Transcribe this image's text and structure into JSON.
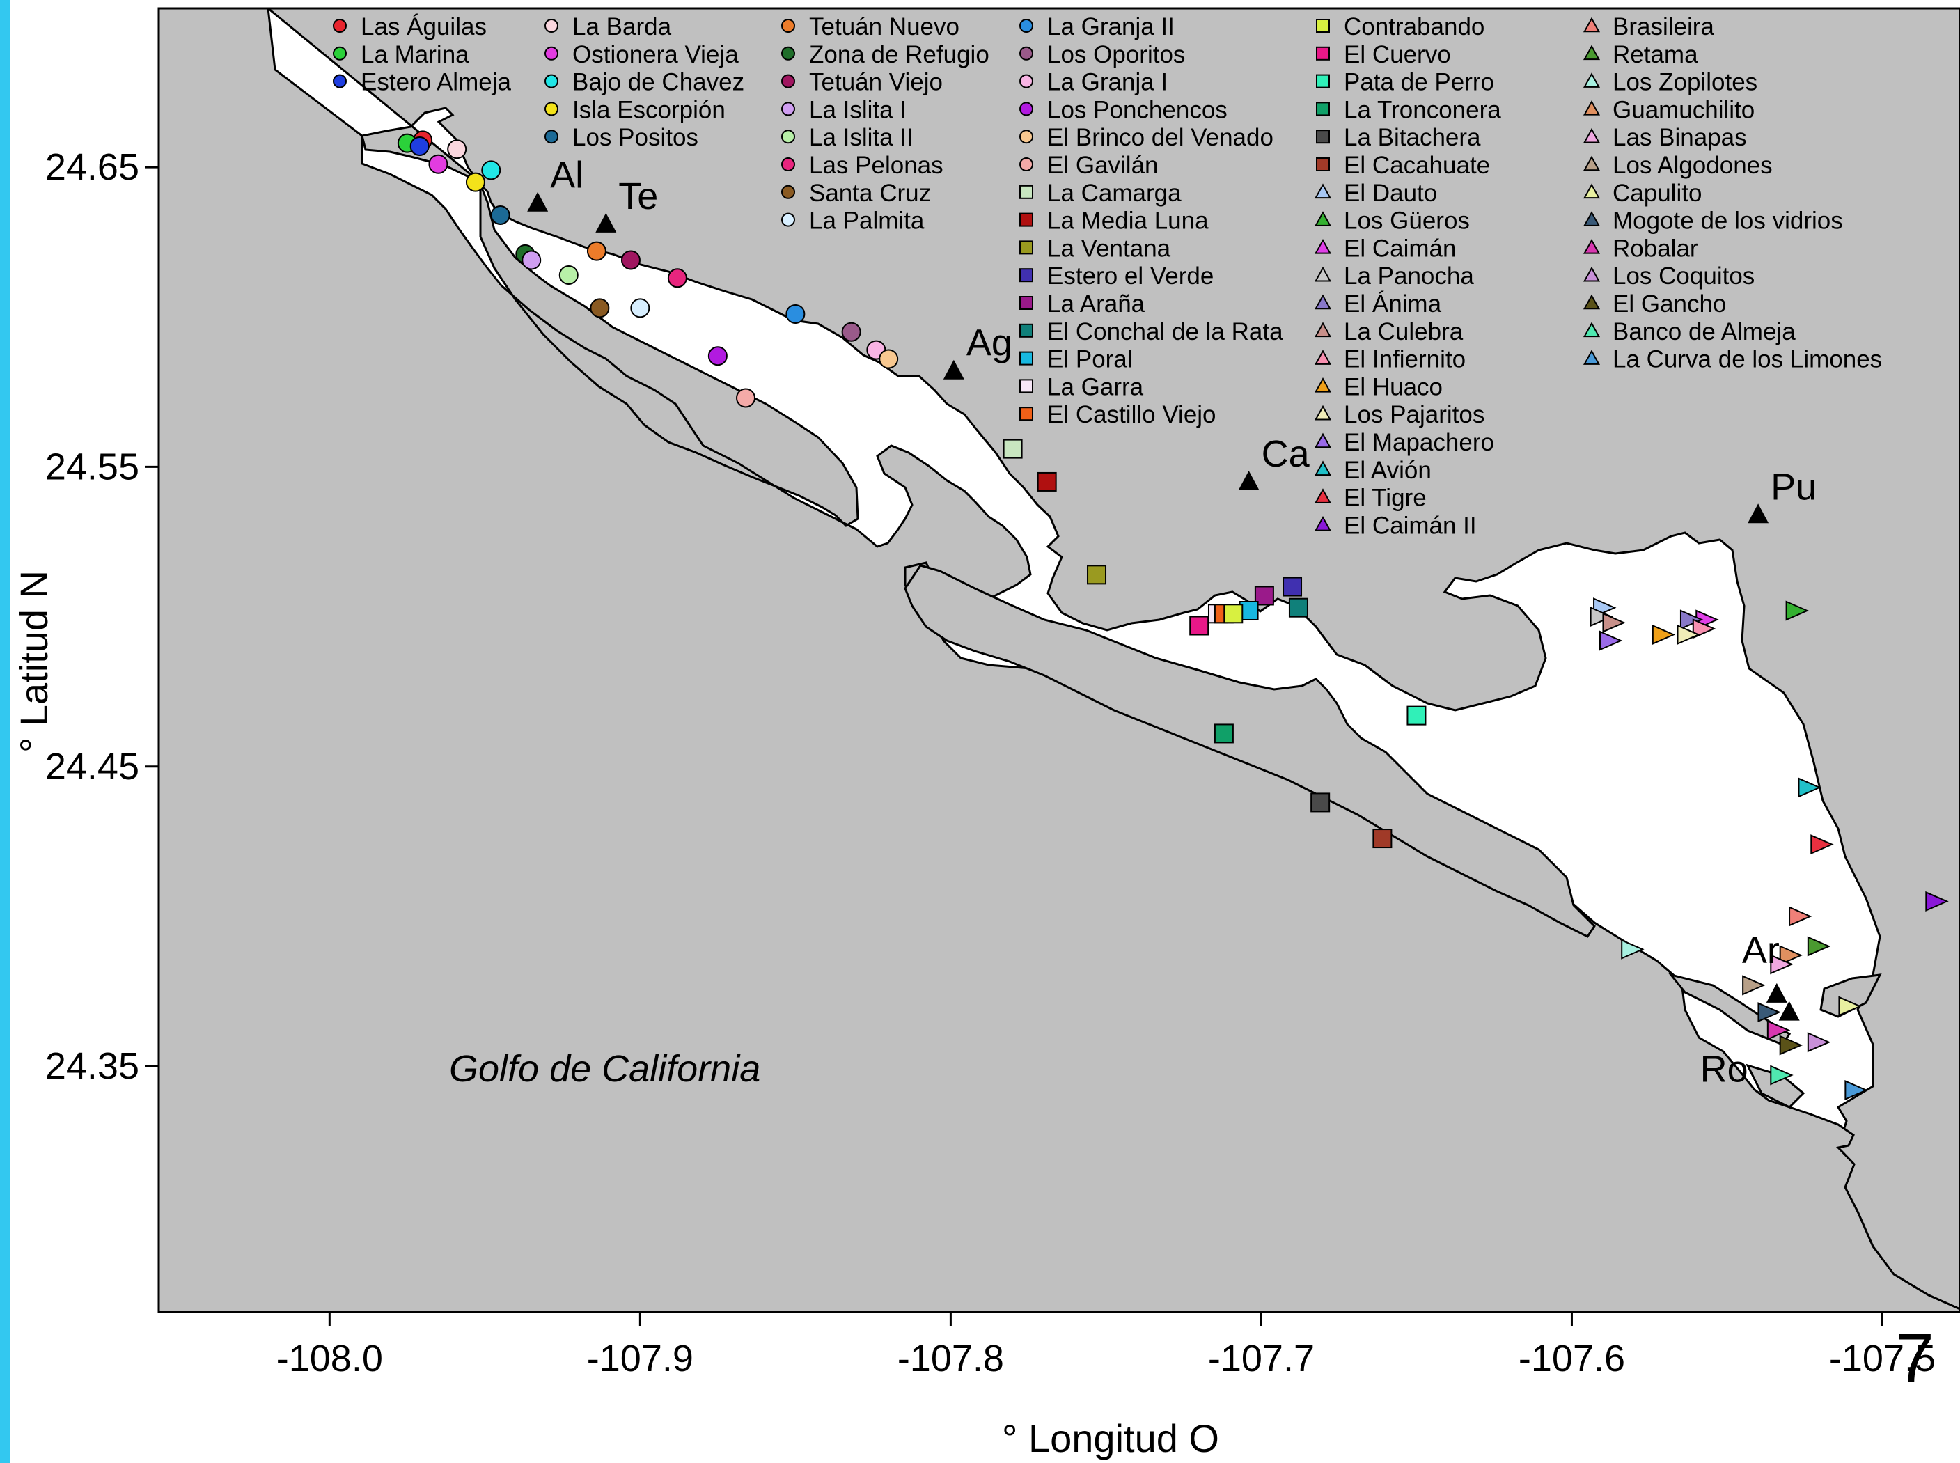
{
  "page_number": "7",
  "map": {
    "x_axis_title": "° Longitud O",
    "y_axis_title": "° Latitud N",
    "x_ticks": [
      -108.0,
      -107.9,
      -107.8,
      -107.7,
      -107.6,
      -107.5
    ],
    "x_tick_labels": [
      "-108.0",
      "-107.9",
      "-107.8",
      "-107.7",
      "-107.6",
      "-107.5"
    ],
    "y_ticks": [
      24.65,
      24.55,
      24.45,
      24.35
    ],
    "y_tick_labels": [
      "24.65",
      "24.55",
      "24.45",
      "24.35"
    ],
    "xlim": [
      -108.055,
      -107.475
    ],
    "ylim": [
      24.268,
      24.703
    ],
    "land_color": "#c0c0c0",
    "water_color": "#ffffff",
    "gulf_label": "Golfo de California",
    "towns": [
      {
        "label": "Al",
        "lon": -107.933,
        "lat": 24.638
      },
      {
        "label": "Te",
        "lon": -107.911,
        "lat": 24.631
      },
      {
        "label": "Ag",
        "lon": -107.799,
        "lat": 24.582
      },
      {
        "label": "Ca",
        "lon": -107.704,
        "lat": 24.545
      },
      {
        "label": "Pu",
        "lon": -107.54,
        "lat": 24.534
      },
      {
        "label": "Ar",
        "lon": -107.534,
        "lat": 24.374
      },
      {
        "label": "Ro",
        "lon": -107.53,
        "lat": 24.368
      }
    ],
    "sites": [
      {
        "name": "Las Águilas",
        "shape": "circle",
        "color": "#e8252e",
        "lon": -107.97,
        "lat": 24.659
      },
      {
        "name": "La Marina",
        "shape": "circle",
        "color": "#2bd13a",
        "lon": -107.975,
        "lat": 24.658
      },
      {
        "name": "Estero Almeja",
        "shape": "circle",
        "color": "#1f3ee0",
        "lon": -107.971,
        "lat": 24.657
      },
      {
        "name": "La Barda",
        "shape": "circle",
        "color": "#fad6de",
        "lon": -107.959,
        "lat": 24.656
      },
      {
        "name": "Ostionera Vieja",
        "shape": "circle",
        "color": "#e23ce0",
        "lon": -107.965,
        "lat": 24.651
      },
      {
        "name": "Bajo de Chavez",
        "shape": "circle",
        "color": "#21e6e6",
        "lon": -107.948,
        "lat": 24.649
      },
      {
        "name": "Isla Escorpión",
        "shape": "circle",
        "color": "#f3e21a",
        "lon": -107.953,
        "lat": 24.645
      },
      {
        "name": "Los Positos",
        "shape": "circle",
        "color": "#1c6a96",
        "lon": -107.945,
        "lat": 24.634
      },
      {
        "name": "Tetuán Nuevo",
        "shape": "circle",
        "color": "#ec7c2a",
        "lon": -107.914,
        "lat": 24.622
      },
      {
        "name": "Zona de Refugio",
        "shape": "circle",
        "color": "#1f6e2a",
        "lon": -107.937,
        "lat": 24.621
      },
      {
        "name": "Tetuán Viejo",
        "shape": "circle",
        "color": "#a01660",
        "lon": -107.903,
        "lat": 24.619
      },
      {
        "name": "La Islita I",
        "shape": "circle",
        "color": "#cf9ef0",
        "lon": -107.935,
        "lat": 24.619
      },
      {
        "name": "La Islita II",
        "shape": "circle",
        "color": "#b8f0a8",
        "lon": -107.923,
        "lat": 24.614
      },
      {
        "name": "Las Pelonas",
        "shape": "circle",
        "color": "#e8257e",
        "lon": -107.888,
        "lat": 24.613
      },
      {
        "name": "Santa Cruz",
        "shape": "circle",
        "color": "#8a5a22",
        "lon": -107.913,
        "lat": 24.603
      },
      {
        "name": "La Palmita",
        "shape": "circle",
        "color": "#d8efff",
        "lon": -107.9,
        "lat": 24.603
      },
      {
        "name": "La Granja II",
        "shape": "circle",
        "color": "#2a8ee0",
        "lon": -107.85,
        "lat": 24.601
      },
      {
        "name": "Los Oporitos",
        "shape": "circle",
        "color": "#9a5a8a",
        "lon": -107.832,
        "lat": 24.595
      },
      {
        "name": "La Granja I",
        "shape": "circle",
        "color": "#f8b4e4",
        "lon": -107.824,
        "lat": 24.589
      },
      {
        "name": "Los Ponchencos",
        "shape": "circle",
        "color": "#b21ae0",
        "lon": -107.875,
        "lat": 24.587
      },
      {
        "name": "El Brinco del Venado",
        "shape": "circle",
        "color": "#f8c890",
        "lon": -107.82,
        "lat": 24.586
      },
      {
        "name": "El Gavilán",
        "shape": "circle",
        "color": "#f4aaa8",
        "lon": -107.866,
        "lat": 24.573
      },
      {
        "name": "La Camarga",
        "shape": "square",
        "color": "#c8e6c0",
        "lon": -107.78,
        "lat": 24.556
      },
      {
        "name": "La Media Luna",
        "shape": "square",
        "color": "#b01010",
        "lon": -107.769,
        "lat": 24.545
      },
      {
        "name": "La Ventana",
        "shape": "square",
        "color": "#9a9a20",
        "lon": -107.753,
        "lat": 24.514
      },
      {
        "name": "Estero el Verde",
        "shape": "square",
        "color": "#4030b0",
        "lon": -107.69,
        "lat": 24.51
      },
      {
        "name": "La Araña",
        "shape": "square",
        "color": "#9a1a8a",
        "lon": -107.699,
        "lat": 24.507
      },
      {
        "name": "El Conchal de la Rata",
        "shape": "square",
        "color": "#10807a",
        "lon": -107.688,
        "lat": 24.503
      },
      {
        "name": "El Poral",
        "shape": "square",
        "color": "#18b8e0",
        "lon": -107.704,
        "lat": 24.502
      },
      {
        "name": "La Garra",
        "shape": "square",
        "color": "#f6e6f6",
        "lon": -107.714,
        "lat": 24.501
      },
      {
        "name": "El Castillo Viejo",
        "shape": "square",
        "color": "#f06018",
        "lon": -107.712,
        "lat": 24.501
      },
      {
        "name": "Contrabando",
        "shape": "square",
        "color": "#d8f040",
        "lon": -107.709,
        "lat": 24.501
      },
      {
        "name": "El Cuervo",
        "shape": "square",
        "color": "#e81888",
        "lon": -107.72,
        "lat": 24.497
      },
      {
        "name": "Pata de Perro",
        "shape": "square",
        "color": "#30f0b8",
        "lon": -107.65,
        "lat": 24.467
      },
      {
        "name": "La Tronconera",
        "shape": "square",
        "color": "#10a068",
        "lon": -107.712,
        "lat": 24.461
      },
      {
        "name": "La Bitachera",
        "shape": "square",
        "color": "#4a4a4a",
        "lon": -107.681,
        "lat": 24.438
      },
      {
        "name": "El Cacahuate",
        "shape": "square",
        "color": "#a03a28",
        "lon": -107.661,
        "lat": 24.426
      },
      {
        "name": "El Dauto",
        "shape": "triangle-up",
        "color": "#a8c8f4",
        "lon": -107.59,
        "lat": 24.503
      },
      {
        "name": "Los Güeros",
        "shape": "triangle-up",
        "color": "#34b030",
        "lon": -107.528,
        "lat": 24.502
      },
      {
        "name": "El Caimán",
        "shape": "triangle-up",
        "color": "#e040e8",
        "lon": -107.557,
        "lat": 24.499
      },
      {
        "name": "La Panocha",
        "shape": "triangle-up",
        "color": "#c8c8c8",
        "lon": -107.591,
        "lat": 24.5
      },
      {
        "name": "El Ánima",
        "shape": "triangle-up",
        "color": "#8878c8",
        "lon": -107.562,
        "lat": 24.499
      },
      {
        "name": "La Culebra",
        "shape": "triangle-up",
        "color": "#c8908a",
        "lon": -107.587,
        "lat": 24.498
      },
      {
        "name": "El Infiernito",
        "shape": "triangle-up",
        "color": "#f890b0",
        "lon": -107.558,
        "lat": 24.496
      },
      {
        "name": "El Huaco",
        "shape": "triangle-up",
        "color": "#f0a018",
        "lon": -107.571,
        "lat": 24.494
      },
      {
        "name": "Los Pajaritos",
        "shape": "triangle-up",
        "color": "#f0ecb8",
        "lon": -107.563,
        "lat": 24.494
      },
      {
        "name": "El Mapachero",
        "shape": "triangle-up",
        "color": "#9a6ae8",
        "lon": -107.588,
        "lat": 24.492
      },
      {
        "name": "El Avión",
        "shape": "triangle-up",
        "color": "#20c0c8",
        "lon": -107.524,
        "lat": 24.443
      },
      {
        "name": "El Tigre",
        "shape": "triangle-up",
        "color": "#e83040",
        "lon": -107.52,
        "lat": 24.424
      },
      {
        "name": "El Caimán II",
        "shape": "triangle-up",
        "color": "#8a18d8",
        "lon": -107.483,
        "lat": 24.405
      },
      {
        "name": "Brasileira",
        "shape": "triangle-up",
        "color": "#f08078",
        "lon": -107.527,
        "lat": 24.4
      },
      {
        "name": "Retama",
        "shape": "triangle-up",
        "color": "#4a9a30",
        "lon": -107.521,
        "lat": 24.39
      },
      {
        "name": "Los Zopilotes",
        "shape": "triangle-up",
        "color": "#a8f0e0",
        "lon": -107.581,
        "lat": 24.389
      },
      {
        "name": "Guamuchilito",
        "shape": "triangle-up",
        "color": "#e09060",
        "lon": -107.53,
        "lat": 24.387
      },
      {
        "name": "Las Binapas",
        "shape": "triangle-up",
        "color": "#f0a8e0",
        "lon": -107.533,
        "lat": 24.384
      },
      {
        "name": "Los Algodones",
        "shape": "triangle-up",
        "color": "#b8a088",
        "lon": -107.542,
        "lat": 24.377
      },
      {
        "name": "Capulito",
        "shape": "triangle-up",
        "color": "#e8f0a0",
        "lon": -107.511,
        "lat": 24.37
      },
      {
        "name": "Mogote de los vidrios",
        "shape": "triangle-up",
        "color": "#3a5a78",
        "lon": -107.537,
        "lat": 24.368
      },
      {
        "name": "Robalar",
        "shape": "triangle-up",
        "color": "#d838b0",
        "lon": -107.534,
        "lat": 24.362
      },
      {
        "name": "Los Coquitos",
        "shape": "triangle-up",
        "color": "#c890d8",
        "lon": -107.521,
        "lat": 24.358
      },
      {
        "name": "El Gancho",
        "shape": "triangle-up",
        "color": "#5a5218",
        "lon": -107.53,
        "lat": 24.357
      },
      {
        "name": "Banco de Almeja",
        "shape": "triangle-up",
        "color": "#50e8b0",
        "lon": -107.533,
        "lat": 24.347
      },
      {
        "name": "La Curva de los Limones",
        "shape": "triangle-up",
        "color": "#4a9ad8",
        "lon": -107.509,
        "lat": 24.342
      }
    ]
  }
}
